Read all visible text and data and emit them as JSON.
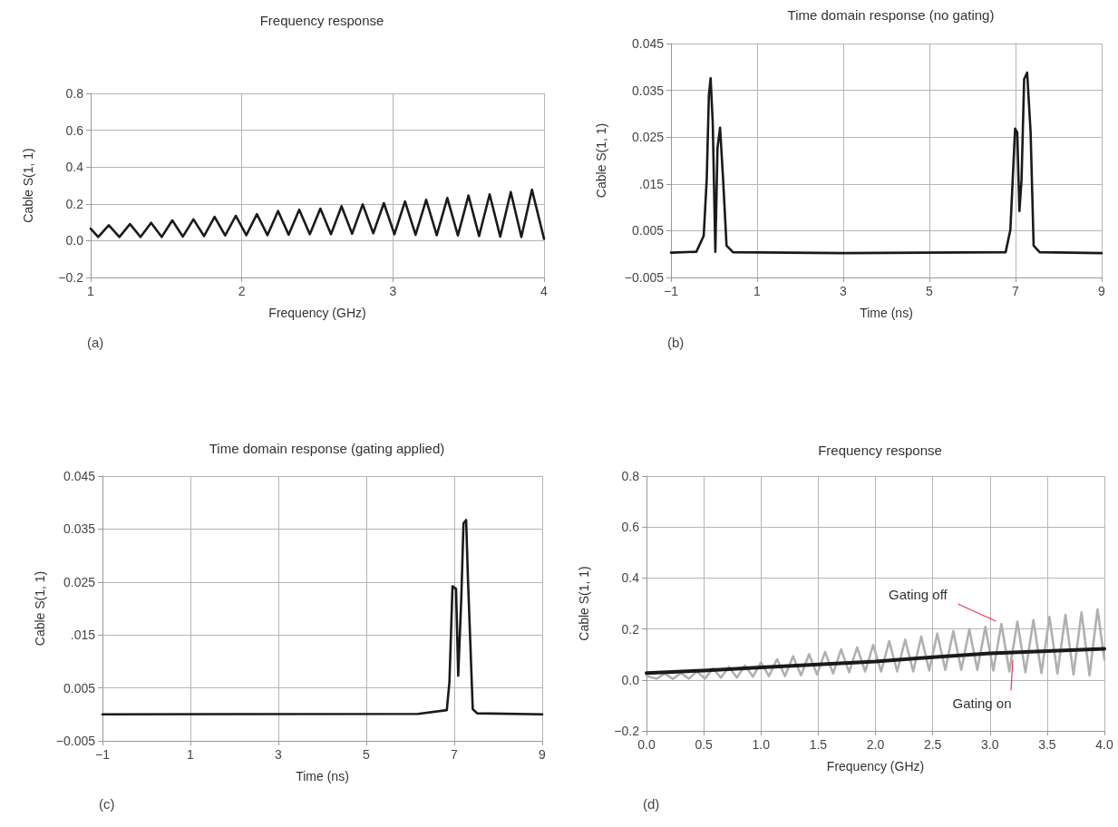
{
  "chart_data": [
    {
      "type": "line",
      "title": "Frequency response",
      "xlabel": "Frequency (GHz)",
      "ylabel": "Cable S(1, 1)",
      "annotations": [
        "(a)"
      ],
      "color": "#1a1a1a",
      "grid": true,
      "legend": false,
      "marker": "none",
      "line_style": "solid",
      "xlim": [
        1,
        4
      ],
      "xticks": [
        1,
        2,
        3,
        4
      ],
      "ylim": [
        -0.2,
        0.8
      ],
      "yticks": [
        {
          "value": -0.2,
          "label": "−0.2"
        },
        {
          "value": 0,
          "label": "0.0"
        },
        0.2,
        0.4,
        0.6,
        0.8
      ],
      "x": [
        1.0,
        1.05,
        1.12,
        1.19,
        1.26,
        1.33,
        1.4,
        1.47,
        1.54,
        1.61,
        1.68,
        1.75,
        1.82,
        1.89,
        1.96,
        2.03,
        2.1,
        2.17,
        2.24,
        2.31,
        2.38,
        2.45,
        2.52,
        2.59,
        2.66,
        2.73,
        2.8,
        2.87,
        2.94,
        3.01,
        3.08,
        3.15,
        3.22,
        3.29,
        3.36,
        3.43,
        3.5,
        3.57,
        3.64,
        3.71,
        3.78,
        3.85,
        3.92,
        4.0
      ],
      "values": [
        0.065,
        0.02,
        0.084,
        0.02,
        0.09,
        0.02,
        0.097,
        0.02,
        0.11,
        0.022,
        0.116,
        0.025,
        0.129,
        0.028,
        0.135,
        0.03,
        0.144,
        0.03,
        0.161,
        0.032,
        0.168,
        0.035,
        0.174,
        0.035,
        0.187,
        0.038,
        0.197,
        0.04,
        0.204,
        0.035,
        0.213,
        0.032,
        0.222,
        0.03,
        0.232,
        0.028,
        0.245,
        0.025,
        0.252,
        0.022,
        0.264,
        0.02,
        0.277,
        0.01
      ]
    },
    {
      "type": "line",
      "title": "Time domain response (no gating)",
      "xlabel": "Time (ns)",
      "ylabel": "Cable S(1, 1)",
      "annotations": [
        "(b)"
      ],
      "color": "#1a1a1a",
      "grid": true,
      "legend": false,
      "marker": "none",
      "line_style": "solid",
      "xlim": [
        -1,
        9
      ],
      "xticks": [
        {
          "value": -1,
          "label": "−1"
        },
        1,
        3,
        5,
        7,
        9
      ],
      "ylim": [
        -0.005,
        0.045
      ],
      "yticks": [
        {
          "value": -0.005,
          "label": "−0.005"
        },
        0.005,
        {
          "value": 0.015,
          "label": ".015"
        },
        0.025,
        0.035,
        0.045
      ],
      "x": [
        -1,
        -0.41,
        -0.24,
        -0.17,
        -0.12,
        -0.08,
        -0.03,
        0.03,
        0.08,
        0.14,
        0.21,
        0.29,
        0.44,
        3.0,
        6.77,
        6.88,
        6.99,
        7.04,
        7.09,
        7.14,
        7.2,
        7.27,
        7.35,
        7.42,
        7.56,
        9
      ],
      "values": [
        0.0003,
        0.0005,
        0.0039,
        0.016,
        0.034,
        0.0376,
        0.028,
        0.0005,
        0.0227,
        0.027,
        0.016,
        0.0018,
        0.0004,
        0.0002,
        0.0004,
        0.0052,
        0.0268,
        0.026,
        0.0092,
        0.016,
        0.0374,
        0.0388,
        0.026,
        0.0018,
        0.0004,
        0.0002
      ]
    },
    {
      "type": "line",
      "title": "Time domain response (gating applied)",
      "xlabel": "Time (ns)",
      "ylabel": "Cable S(1, 1)",
      "annotations": [
        "(c)"
      ],
      "color": "#1a1a1a",
      "grid": true,
      "legend": false,
      "marker": "none",
      "line_style": "solid",
      "xlim": [
        -1,
        9
      ],
      "xticks": [
        {
          "value": -1,
          "label": "−1"
        },
        1,
        3,
        5,
        7,
        9
      ],
      "ylim": [
        -0.005,
        0.045
      ],
      "yticks": [
        {
          "value": -0.005,
          "label": "−0.005"
        },
        0.005,
        {
          "value": 0.015,
          "label": ".015"
        },
        0.025,
        0.035,
        0.045
      ],
      "x": [
        -1,
        6.18,
        6.83,
        6.89,
        6.96,
        7.04,
        7.09,
        7.16,
        7.21,
        7.27,
        7.31,
        7.42,
        7.52,
        9
      ],
      "values": [
        0,
        0.0001,
        0.0008,
        0.0061,
        0.0242,
        0.0237,
        0.0073,
        0.022,
        0.0361,
        0.0367,
        0.0259,
        0.001,
        0.0002,
        0
      ]
    },
    {
      "type": "line",
      "title": "Frequency response",
      "xlabel": "Frequency (GHz)",
      "ylabel": "Cable S(1, 1)",
      "annotations": [
        "(d)"
      ],
      "grid": true,
      "legend": false,
      "marker": "none",
      "line_style": "solid",
      "xlim": [
        0,
        4
      ],
      "xticks": [
        {
          "value": 0,
          "label": "0.0"
        },
        0.5,
        {
          "value": 1,
          "label": "1.0"
        },
        1.5,
        {
          "value": 2,
          "label": "2.0"
        },
        2.5,
        {
          "value": 3,
          "label": "3.0"
        },
        3.5,
        {
          "value": 4,
          "label": "4.0"
        }
      ],
      "ylim": [
        -0.2,
        0.8
      ],
      "yticks": [
        {
          "value": -0.2,
          "label": "−0.2"
        },
        {
          "value": 0,
          "label": "0.0"
        },
        0.2,
        0.4,
        0.6,
        0.8
      ],
      "series": [
        {
          "name": "Gating off",
          "color": "#b0b0b0",
          "x": [
            0,
            0.09,
            0.16,
            0.23,
            0.3,
            0.37,
            0.44,
            0.51,
            0.58,
            0.65,
            0.72,
            0.79,
            0.86,
            0.93,
            1.0,
            1.07,
            1.14,
            1.21,
            1.28,
            1.35,
            1.42,
            1.49,
            1.56,
            1.63,
            1.7,
            1.77,
            1.84,
            1.91,
            1.98,
            2.05,
            2.12,
            2.19,
            2.26,
            2.33,
            2.4,
            2.47,
            2.54,
            2.61,
            2.68,
            2.75,
            2.82,
            2.89,
            2.96,
            3.03,
            3.1,
            3.17,
            3.24,
            3.31,
            3.38,
            3.45,
            3.52,
            3.59,
            3.66,
            3.73,
            3.8,
            3.87,
            3.94,
            4.0
          ],
          "values": [
            0.015,
            0.005,
            0.025,
            0.004,
            0.027,
            0.005,
            0.033,
            0.005,
            0.045,
            0.009,
            0.051,
            0.009,
            0.057,
            0.013,
            0.069,
            0.015,
            0.081,
            0.015,
            0.093,
            0.018,
            0.101,
            0.021,
            0.11,
            0.025,
            0.12,
            0.03,
            0.128,
            0.033,
            0.137,
            0.033,
            0.152,
            0.033,
            0.158,
            0.033,
            0.17,
            0.037,
            0.182,
            0.039,
            0.191,
            0.039,
            0.199,
            0.039,
            0.208,
            0.037,
            0.22,
            0.033,
            0.229,
            0.03,
            0.235,
            0.027,
            0.247,
            0.025,
            0.255,
            0.021,
            0.265,
            0.018,
            0.277,
            0.08
          ]
        },
        {
          "name": "Gating on",
          "color": "#1a1a1a",
          "x": [
            0,
            0.5,
            1,
            1.5,
            2,
            2.5,
            3,
            3.5,
            4
          ],
          "values": [
            0.027,
            0.037,
            0.049,
            0.061,
            0.072,
            0.089,
            0.104,
            0.113,
            0.122
          ]
        }
      ]
    }
  ]
}
